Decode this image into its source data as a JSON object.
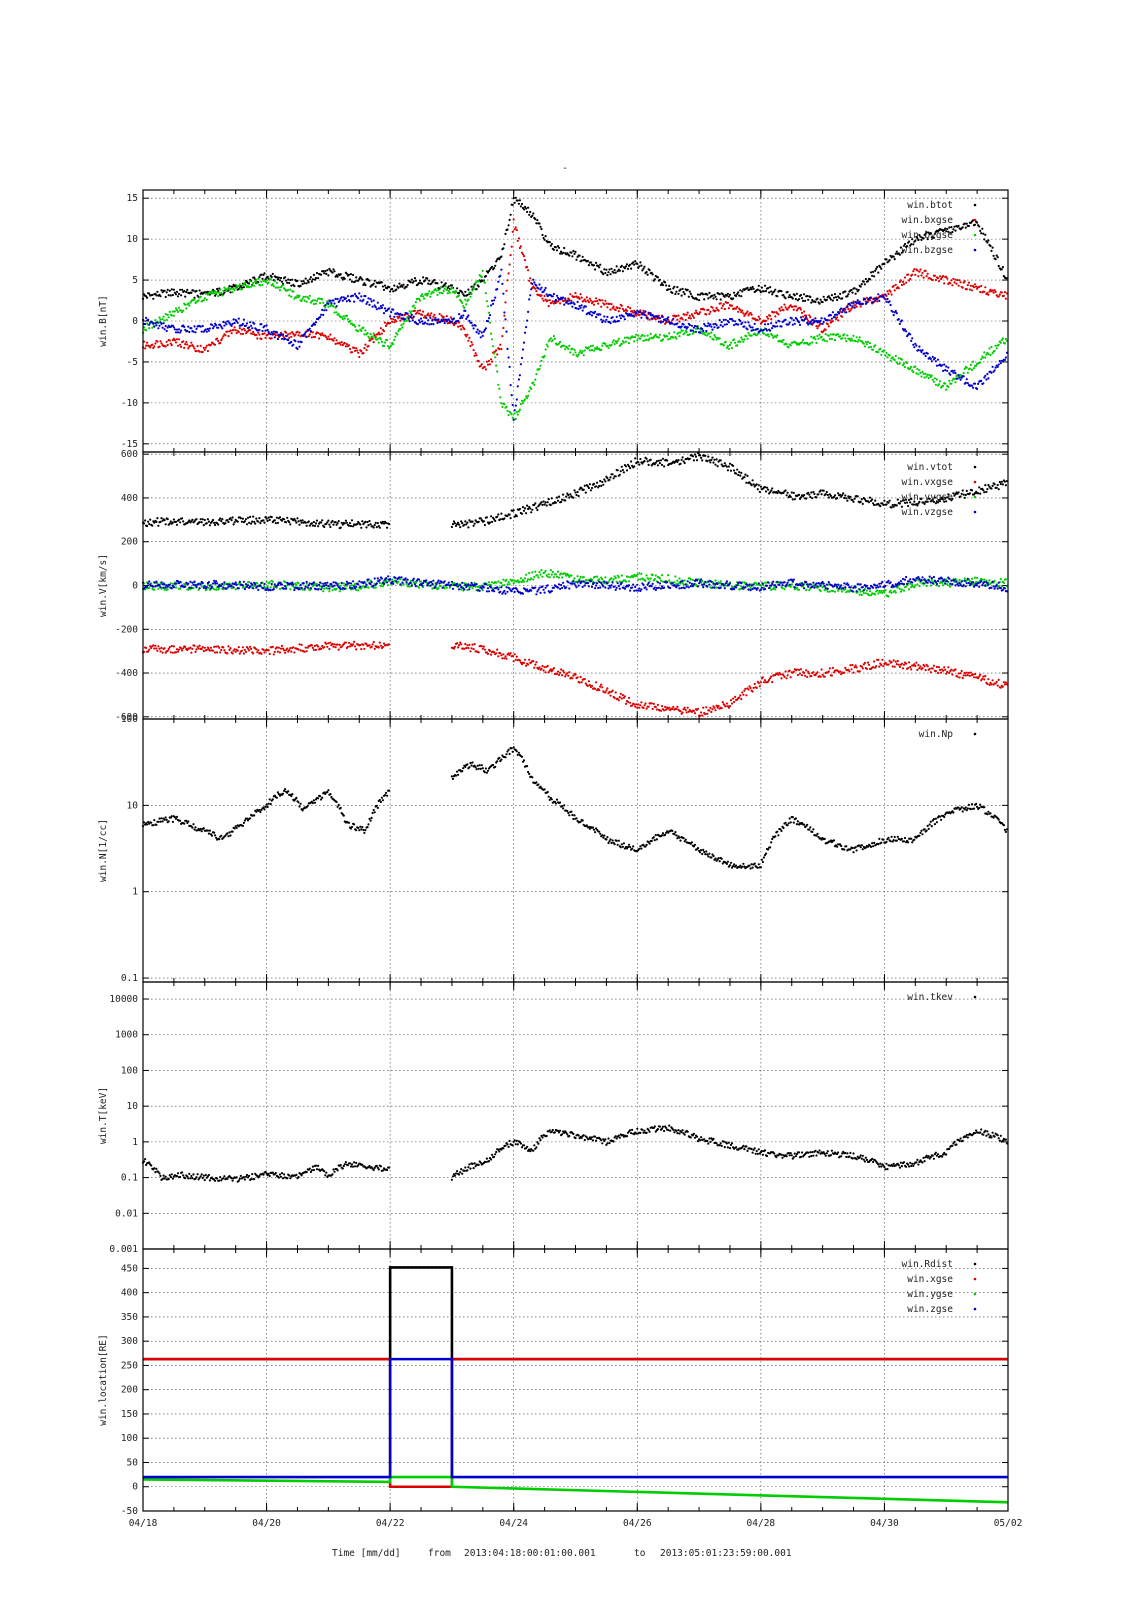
{
  "title": "-",
  "footer": {
    "time_label": "Time [mm/dd]",
    "from_label": "from",
    "from_value": "2013:04:18:00:01:00.001",
    "to_label": "to",
    "to_value": "2013:05:01:23:59:00.001"
  },
  "x_axis": {
    "tick_labels": [
      "04/18",
      "04/20",
      "04/22",
      "04/24",
      "04/26",
      "04/28",
      "04/30",
      "05/02"
    ],
    "range_days": [
      0,
      14
    ]
  },
  "chart_data": [
    {
      "type": "scatter",
      "ylabel": "win.B[nT]",
      "ylim": [
        -16,
        16
      ],
      "yticks": [
        -15,
        -10,
        -5,
        0,
        5,
        10,
        15
      ],
      "scale": "linear",
      "grid": true,
      "legend_position": "top-right",
      "series": [
        {
          "name": "win.btot",
          "color": "#000000",
          "x": [
            0,
            0.5,
            1,
            1.5,
            2,
            2.5,
            3,
            3.5,
            4,
            4.5,
            5,
            5.2,
            5.5,
            5.8,
            6,
            6.3,
            6.6,
            7,
            7.5,
            8,
            8.5,
            9,
            9.5,
            10,
            10.5,
            11,
            11.5,
            12,
            12.5,
            13,
            13.5,
            14
          ],
          "y": [
            3,
            3.5,
            3.2,
            4,
            5.5,
            4.5,
            6,
            5,
            4,
            5,
            4,
            3,
            5,
            8,
            15,
            13,
            9,
            8,
            6,
            7,
            4,
            3,
            3,
            4,
            3,
            2.5,
            3.5,
            7,
            10,
            11,
            12,
            5
          ]
        },
        {
          "name": "win.bxgse",
          "color": "#dd0000",
          "x": [
            0,
            0.5,
            1,
            1.5,
            2,
            2.5,
            3,
            3.5,
            4,
            4.5,
            5,
            5.2,
            5.5,
            5.8,
            6,
            6.3,
            6.6,
            7,
            7.5,
            8,
            8.5,
            9,
            9.5,
            10,
            10.5,
            11,
            11.5,
            12,
            12.5,
            13,
            13.5,
            14
          ],
          "y": [
            -3,
            -2.5,
            -3.5,
            -1,
            -2,
            -1.5,
            -2,
            -4,
            0,
            1,
            0,
            -1,
            -6,
            -3,
            12,
            4,
            2,
            3,
            2,
            1,
            0,
            1,
            2,
            0,
            2,
            -1,
            2,
            3,
            6,
            5,
            4,
            3
          ]
        },
        {
          "name": "win.bygse",
          "color": "#00cc00",
          "x": [
            0,
            0.5,
            1,
            1.5,
            2,
            2.5,
            3,
            3.5,
            4,
            4.5,
            5,
            5.2,
            5.5,
            5.8,
            6,
            6.3,
            6.6,
            7,
            7.5,
            8,
            8.5,
            9,
            9.5,
            10,
            10.5,
            11,
            11.5,
            12,
            12.5,
            13,
            13.5,
            14
          ],
          "y": [
            -1,
            1,
            3,
            4,
            5,
            3,
            2,
            -1,
            -3,
            3,
            4,
            2,
            6,
            -10,
            -12,
            -8,
            -2,
            -4,
            -3,
            -2,
            -2,
            -1,
            -3,
            -1,
            -3,
            -2,
            -2,
            -4,
            -6,
            -8,
            -5,
            -2
          ]
        },
        {
          "name": "win.bzgse",
          "color": "#0000cc",
          "x": [
            0,
            0.5,
            1,
            1.5,
            2,
            2.5,
            3,
            3.5,
            4,
            4.5,
            5,
            5.2,
            5.5,
            5.8,
            6,
            6.3,
            6.6,
            7,
            7.5,
            8,
            8.5,
            9,
            9.5,
            10,
            10.5,
            11,
            11.5,
            12,
            12.5,
            13,
            13.5,
            14
          ],
          "y": [
            0,
            -1,
            -1,
            0,
            -1,
            -3,
            2,
            3,
            1,
            0,
            0,
            1,
            -2,
            6,
            -12,
            5,
            3,
            2,
            0,
            1,
            0,
            -1,
            0,
            -1,
            0,
            0,
            2,
            3,
            -3,
            -6,
            -8,
            -4
          ]
        }
      ]
    },
    {
      "type": "scatter",
      "ylabel": "win.V[km/s]",
      "ylim": [
        -610,
        610
      ],
      "yticks": [
        -600,
        -400,
        -200,
        0,
        200,
        400,
        600
      ],
      "scale": "linear",
      "grid": true,
      "legend_position": "top-right",
      "series": [
        {
          "name": "win.vtot",
          "color": "#000000",
          "x": [
            0,
            1,
            2,
            3,
            3.5,
            4,
            null,
            5,
            5.5,
            6,
            6.5,
            7,
            7.5,
            8,
            8.5,
            9,
            9.5,
            10,
            10.5,
            11,
            11.5,
            12,
            12.5,
            13,
            13.5,
            14
          ],
          "y": [
            290,
            290,
            300,
            280,
            280,
            275,
            null,
            275,
            290,
            330,
            370,
            420,
            480,
            570,
            560,
            590,
            540,
            440,
            410,
            420,
            400,
            370,
            380,
            400,
            430,
            470
          ]
        },
        {
          "name": "win.vxgse",
          "color": "#dd0000",
          "x": [
            0,
            1,
            2,
            3,
            3.5,
            4,
            null,
            5,
            5.5,
            6,
            6.5,
            7,
            7.5,
            8,
            8.5,
            9,
            9.5,
            10,
            10.5,
            11,
            11.5,
            12,
            12.5,
            13,
            13.5,
            14
          ],
          "y": [
            -290,
            -290,
            -300,
            -275,
            -275,
            -275,
            null,
            -275,
            -290,
            -330,
            -380,
            -420,
            -480,
            -550,
            -560,
            -580,
            -540,
            -440,
            -400,
            -400,
            -380,
            -350,
            -370,
            -390,
            -420,
            -460
          ]
        },
        {
          "name": "win.vygse",
          "color": "#00cc00",
          "x": [
            0,
            1,
            2,
            3,
            3.5,
            4,
            5,
            5.5,
            6,
            6.5,
            7,
            7.5,
            8,
            8.5,
            9,
            9.5,
            10,
            10.5,
            11,
            11.5,
            12,
            12.5,
            13,
            13.5,
            14
          ],
          "y": [
            0,
            -5,
            5,
            -10,
            -5,
            20,
            -5,
            -5,
            20,
            60,
            30,
            20,
            40,
            30,
            10,
            0,
            -5,
            0,
            -10,
            -20,
            -40,
            10,
            10,
            20,
            10
          ]
        },
        {
          "name": "win.vzgse",
          "color": "#0000cc",
          "x": [
            0,
            1,
            2,
            3,
            3.5,
            4,
            5,
            5.5,
            6,
            6.5,
            7,
            7.5,
            8,
            8.5,
            9,
            9.5,
            10,
            10.5,
            11,
            11.5,
            12,
            12.5,
            13,
            13.5,
            14
          ],
          "y": [
            0,
            5,
            -5,
            0,
            5,
            25,
            0,
            -10,
            -30,
            -20,
            10,
            0,
            -10,
            0,
            10,
            0,
            -5,
            10,
            0,
            -10,
            0,
            30,
            20,
            10,
            -10
          ]
        }
      ]
    },
    {
      "type": "scatter",
      "ylabel": "win.N[1/cc]",
      "ylim": [
        0.09,
        100
      ],
      "yticks": [
        0.1,
        1,
        10,
        100
      ],
      "scale": "log",
      "grid": true,
      "legend_position": "top-right",
      "series": [
        {
          "name": "win.Np",
          "color": "#000000",
          "x": [
            0,
            0.5,
            1,
            1.3,
            1.6,
            2,
            2.3,
            2.6,
            3,
            3.3,
            3.6,
            4,
            null,
            5,
            5.3,
            5.6,
            6,
            6.3,
            6.6,
            7,
            7.5,
            8,
            8.5,
            9,
            9.5,
            10,
            10.5,
            11,
            11.5,
            12,
            12.5,
            13,
            13.5,
            14
          ],
          "y": [
            6,
            7,
            5,
            4,
            6,
            10,
            15,
            9,
            14,
            6,
            5,
            15,
            null,
            20,
            30,
            25,
            45,
            20,
            12,
            7,
            4,
            3,
            5,
            3,
            2,
            2,
            7,
            4,
            3,
            4,
            4,
            8,
            10,
            5
          ]
        }
      ]
    },
    {
      "type": "scatter",
      "ylabel": "win.T[keV]",
      "ylim": [
        0.001,
        30000
      ],
      "yticks": [
        0.001,
        0.01,
        0.1,
        1,
        10,
        100,
        1000,
        10000
      ],
      "ytick_labels": [
        "0.001",
        "0.01",
        "0.1",
        "1",
        "10",
        "100",
        "1000",
        "10000"
      ],
      "scale": "log",
      "grid": true,
      "legend_position": "top-right",
      "series": [
        {
          "name": "win.tkev",
          "color": "#000000",
          "x": [
            0,
            0.3,
            0.6,
            1,
            1.5,
            2,
            2.5,
            2.8,
            3,
            3.3,
            3.6,
            4,
            null,
            5,
            5.3,
            5.6,
            6,
            6.3,
            6.6,
            7,
            7.5,
            8,
            8.5,
            9,
            9.5,
            10,
            10.5,
            11,
            11.5,
            12,
            12.5,
            13,
            13.5,
            14
          ],
          "y": [
            0.3,
            0.1,
            0.12,
            0.1,
            0.09,
            0.12,
            0.1,
            0.2,
            0.1,
            0.25,
            0.2,
            0.18,
            null,
            0.1,
            0.2,
            0.3,
            1,
            0.5,
            2,
            1.5,
            1,
            2,
            2.5,
            1.2,
            0.8,
            0.5,
            0.4,
            0.5,
            0.4,
            0.2,
            0.25,
            0.5,
            2,
            1
          ]
        }
      ]
    },
    {
      "type": "line",
      "ylabel": "win.location[RE]",
      "ylim": [
        -50,
        490
      ],
      "yticks": [
        -50,
        0,
        50,
        100,
        150,
        200,
        250,
        300,
        350,
        400,
        450
      ],
      "scale": "linear",
      "grid": true,
      "legend_position": "top-right",
      "series": [
        {
          "name": "win.Rdist",
          "color": "#000000",
          "x": [
            0,
            4,
            4,
            5,
            5,
            14
          ],
          "y": [
            263,
            263,
            452,
            452,
            263,
            263
          ]
        },
        {
          "name": "win.xgse",
          "color": "#dd0000",
          "x": [
            0,
            4,
            4,
            5,
            5,
            14
          ],
          "y": [
            263,
            263,
            0,
            0,
            263,
            263
          ]
        },
        {
          "name": "win.ygse",
          "color": "#00cc00",
          "x": [
            0,
            4,
            4,
            5,
            5,
            14
          ],
          "y": [
            15,
            10,
            20,
            20,
            0,
            -32
          ]
        },
        {
          "name": "win.zgse",
          "color": "#0000cc",
          "x": [
            0,
            4,
            4,
            5,
            5,
            14
          ],
          "y": [
            20,
            20,
            263,
            263,
            20,
            20
          ]
        }
      ]
    }
  ]
}
